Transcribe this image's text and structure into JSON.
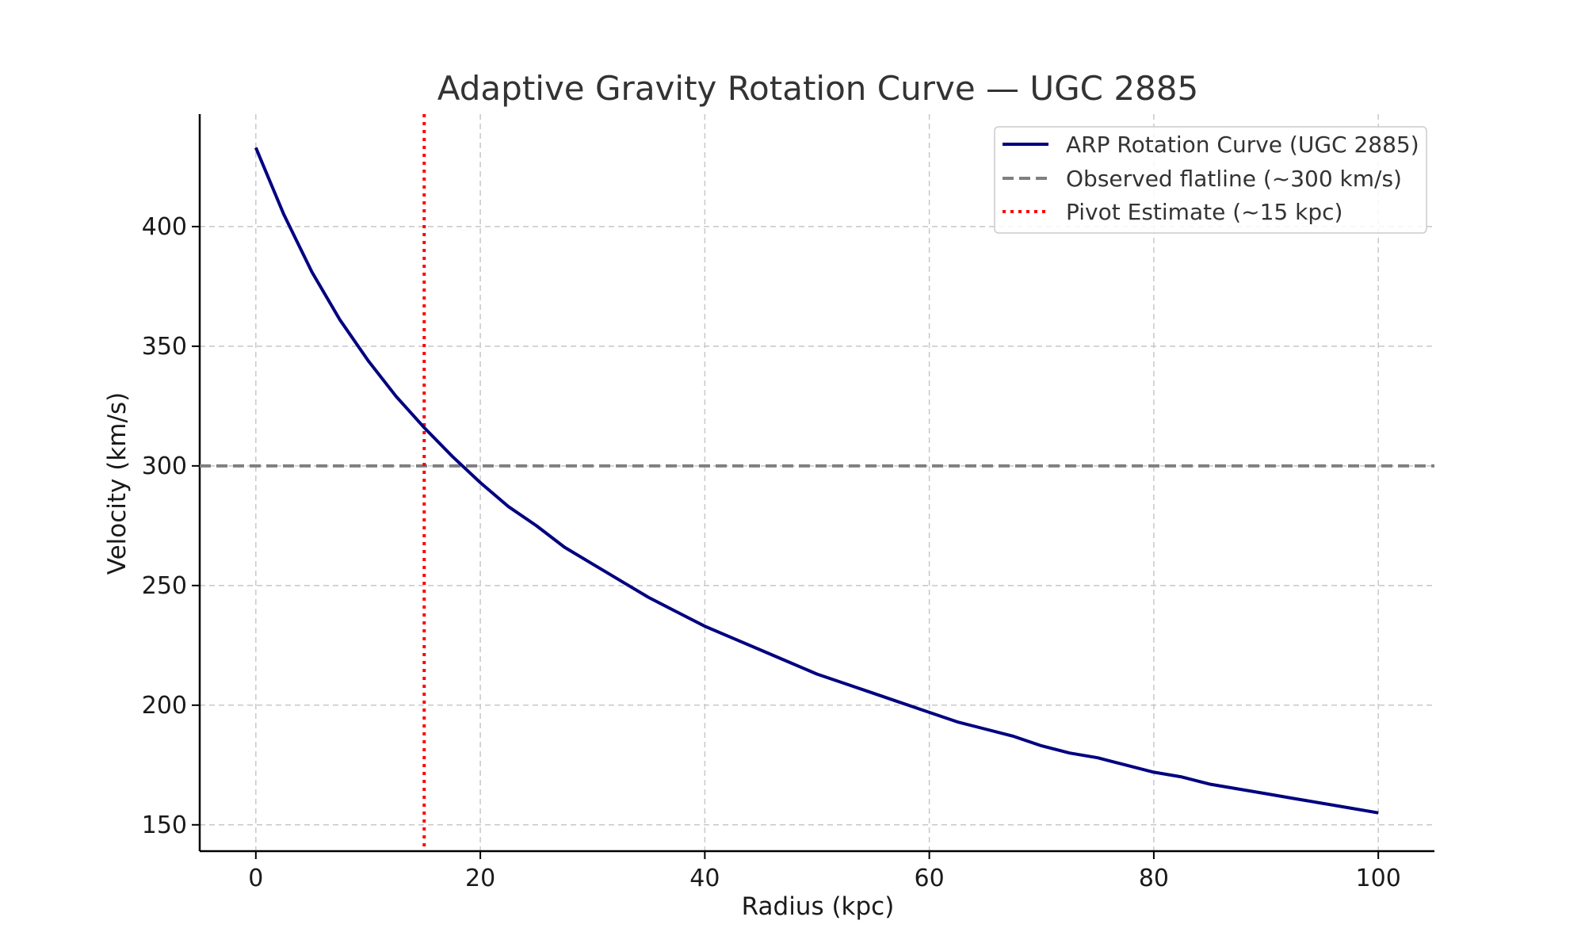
{
  "chart_data": {
    "type": "line",
    "title": "Adaptive Gravity Rotation Curve — UGC 2885",
    "xlabel": "Radius (kpc)",
    "ylabel": "Velocity (km/s)",
    "xlim": [
      -5,
      105
    ],
    "ylim": [
      139,
      447
    ],
    "x_ticks": [
      0,
      20,
      40,
      60,
      80,
      100
    ],
    "y_ticks": [
      150,
      200,
      250,
      300,
      350,
      400
    ],
    "grid": true,
    "legend_position": "upper right",
    "series": [
      {
        "name": "ARP Rotation Curve (UGC 2885)",
        "style": "solid",
        "color": "#000080",
        "x": [
          0,
          2.5,
          5,
          7.5,
          10,
          12.5,
          15,
          17.5,
          20,
          22.5,
          25,
          27.5,
          30,
          32.5,
          35,
          37.5,
          40,
          42.5,
          45,
          47.5,
          50,
          52.5,
          55,
          57.5,
          60,
          62.5,
          65,
          67.5,
          70,
          72.5,
          75,
          77.5,
          80,
          82.5,
          85,
          87.5,
          90,
          92.5,
          95,
          97.5,
          100
        ],
        "y": [
          433,
          405,
          381,
          361,
          344,
          329,
          316,
          304,
          293,
          283,
          275,
          266,
          259,
          252,
          245,
          239,
          233,
          228,
          223,
          218,
          213,
          209,
          205,
          201,
          197,
          193,
          190,
          187,
          183,
          180,
          178,
          175,
          172,
          170,
          167,
          165,
          163,
          161,
          159,
          157,
          155
        ]
      },
      {
        "name": "Observed flatline (~300 km/s)",
        "style": "dashed",
        "color": "#808080",
        "y_value": 300
      },
      {
        "name": "Pivot Estimate (~15 kpc)",
        "style": "dotted",
        "color": "#ff0000",
        "x_value": 15
      }
    ]
  }
}
